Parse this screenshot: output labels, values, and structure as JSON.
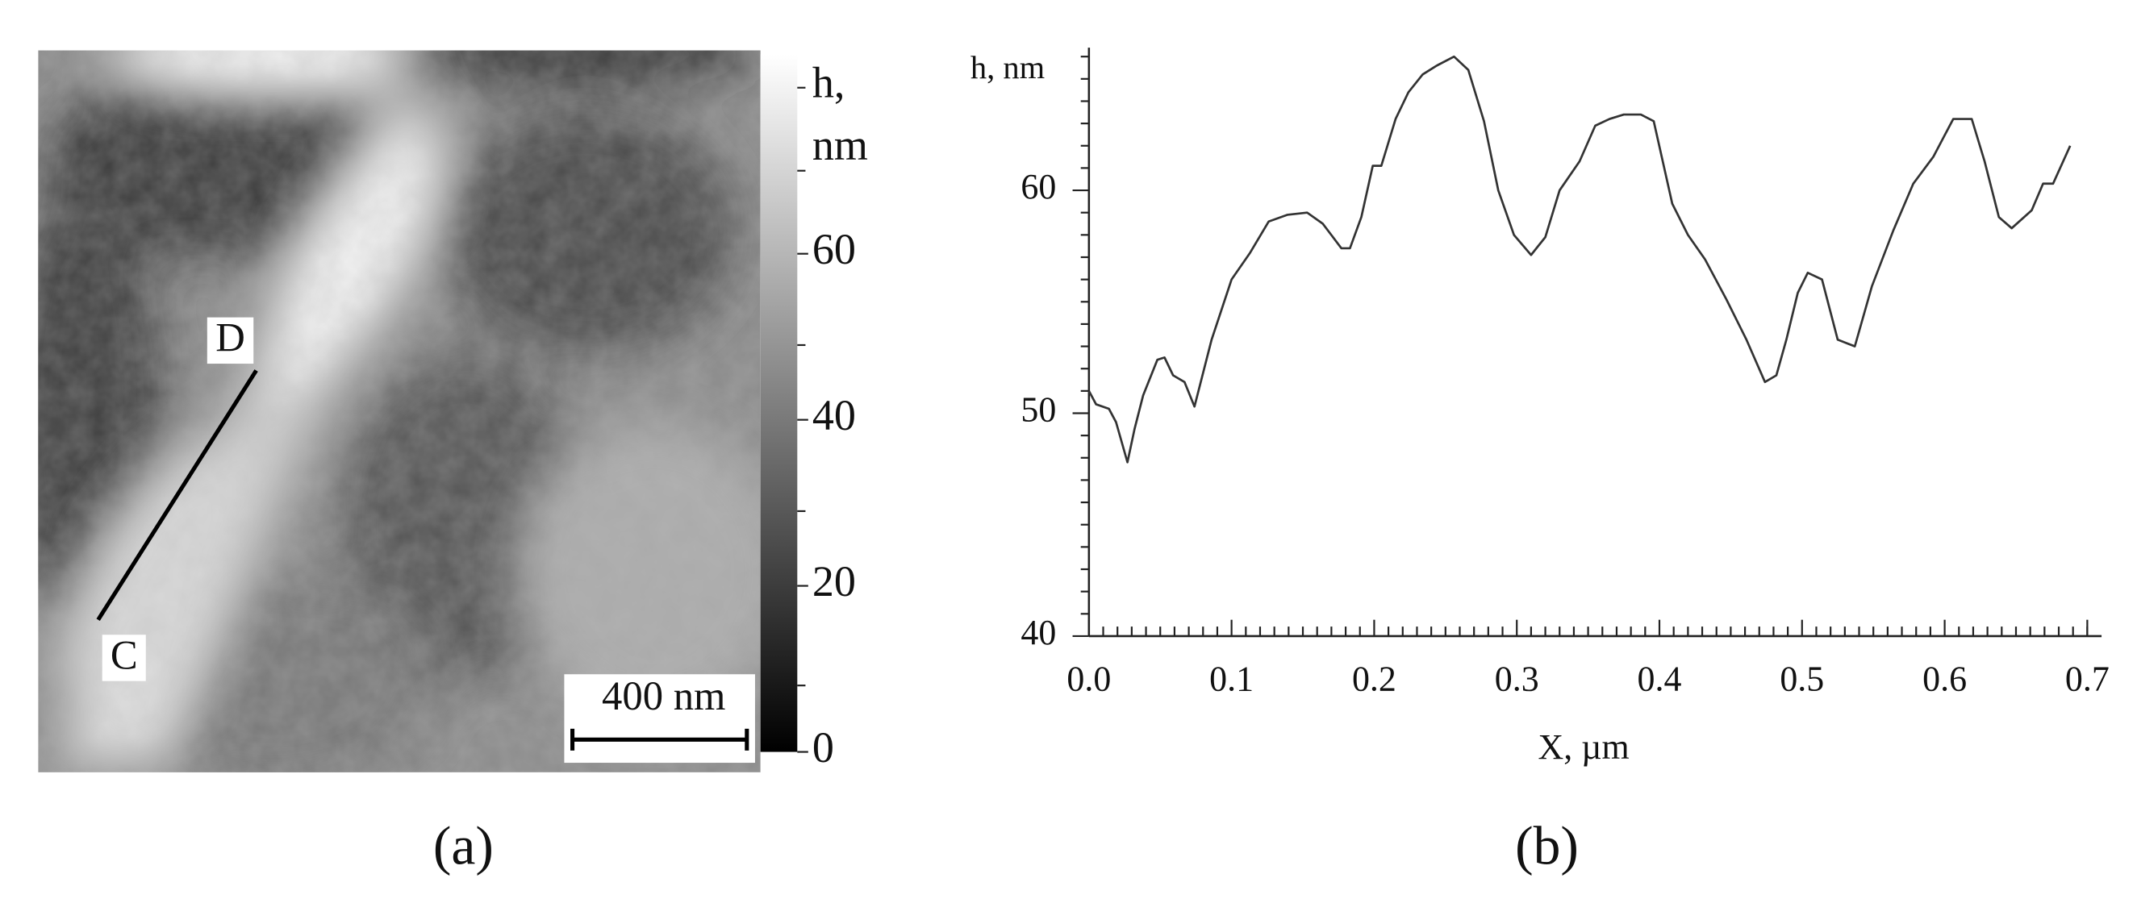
{
  "chart_data": [
    {
      "type": "image",
      "panel": "(a)",
      "colorbar": {
        "label": [
          "h,",
          "nm"
        ],
        "lim": [
          0,
          84
        ],
        "ticks": [
          0,
          20,
          40,
          60
        ],
        "minorticks": [
          8,
          29,
          49,
          70,
          80
        ]
      },
      "scalebar": "400 nm",
      "markers": [
        "D",
        "C"
      ]
    },
    {
      "type": "line",
      "panel": "(b)",
      "xlabel": "X, µm",
      "ylabel": "h, nm",
      "xlim": [
        0,
        0.71
      ],
      "ylim": [
        40,
        66.4
      ],
      "xticks": [
        {
          "value": 0,
          "label": "0.0"
        },
        0.1,
        0.2,
        0.3,
        0.4,
        0.5,
        0.6,
        0.7
      ],
      "yticks": [
        40,
        50,
        60
      ],
      "xminorticks": [
        0.01,
        0.02,
        0.03,
        0.04,
        0.05,
        0.06,
        0.07,
        0.08,
        0.09,
        0.11,
        0.12,
        0.13,
        0.14,
        0.15,
        0.16,
        0.17,
        0.18,
        0.19,
        0.21,
        0.22,
        0.23,
        0.24,
        0.25,
        0.26,
        0.27,
        0.28,
        0.29,
        0.31,
        0.32,
        0.33,
        0.34,
        0.35,
        0.36,
        0.37,
        0.38,
        0.39,
        0.41,
        0.42,
        0.43,
        0.44,
        0.45,
        0.46,
        0.47,
        0.48,
        0.49,
        0.51,
        0.52,
        0.53,
        0.54,
        0.55,
        0.56,
        0.57,
        0.58,
        0.59,
        0.61,
        0.62,
        0.63,
        0.64,
        0.65,
        0.66,
        0.67,
        0.68,
        0.69,
        0.7
      ],
      "yminorticks": [
        41,
        42,
        43,
        44,
        45,
        46,
        47,
        48,
        49,
        51,
        52,
        53,
        54,
        55,
        56,
        57,
        58,
        59,
        61,
        62,
        63,
        64,
        65,
        66
      ],
      "color": "#333333",
      "x": [
        0,
        0.005,
        0.014,
        0.019,
        0.027,
        0.032,
        0.038,
        0.048,
        0.053,
        0.059,
        0.067,
        0.074,
        0.086,
        0.1,
        0.113,
        0.126,
        0.139,
        0.153,
        0.164,
        0.177,
        0.183,
        0.191,
        0.199,
        0.205,
        0.215,
        0.224,
        0.234,
        0.244,
        0.256,
        0.266,
        0.277,
        0.287,
        0.298,
        0.31,
        0.32,
        0.33,
        0.344,
        0.355,
        0.365,
        0.375,
        0.387,
        0.396,
        0.409,
        0.42,
        0.432,
        0.447,
        0.461,
        0.474,
        0.482,
        0.489,
        0.497,
        0.504,
        0.514,
        0.525,
        0.537,
        0.549,
        0.564,
        0.578,
        0.592,
        0.606,
        0.619,
        0.628,
        0.638,
        0.647,
        0.661,
        0.669,
        0.676,
        0.688
      ],
      "values": [
        51.0,
        50.4,
        50.2,
        49.6,
        47.8,
        49.3,
        50.8,
        52.4,
        52.5,
        51.7,
        51.4,
        50.3,
        53.3,
        56.0,
        57.2,
        58.6,
        58.9,
        59.0,
        58.5,
        57.4,
        57.4,
        58.8,
        61.1,
        61.1,
        63.2,
        64.4,
        65.2,
        65.6,
        66.0,
        65.4,
        63.1,
        60.0,
        58.0,
        57.1,
        57.9,
        60.0,
        61.3,
        62.9,
        63.2,
        63.4,
        63.4,
        63.1,
        59.4,
        58.0,
        56.9,
        55.1,
        53.3,
        51.4,
        51.7,
        53.3,
        55.4,
        56.3,
        56.0,
        53.3,
        53.0,
        55.7,
        58.2,
        60.3,
        61.5,
        63.2,
        63.2,
        61.3,
        58.8,
        58.3,
        59.1,
        60.3,
        60.3,
        62.0
      ]
    }
  ]
}
